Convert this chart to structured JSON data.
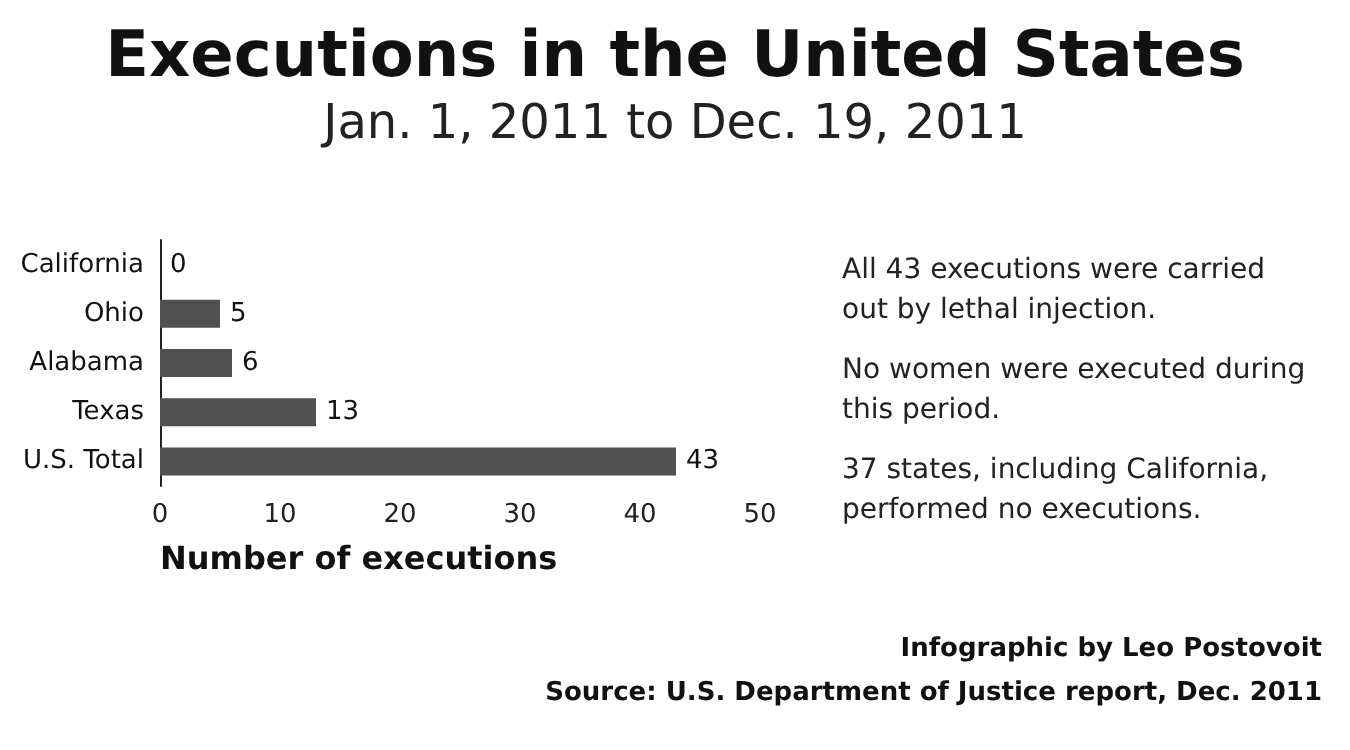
{
  "chart_data": {
    "type": "bar",
    "orientation": "horizontal",
    "title": "Executions in the United States",
    "subtitle": "Jan. 1, 2011 to Dec. 19, 2011",
    "xlabel": "Number of executions",
    "categories": [
      "California",
      "Ohio",
      "Alabama",
      "Texas",
      "U.S. Total"
    ],
    "values": [
      0,
      5,
      6,
      13,
      43
    ],
    "color": "#505050",
    "data_labels": true,
    "xlim": [
      0,
      50
    ],
    "xticks": [
      0,
      10,
      20,
      30,
      40,
      50
    ],
    "grid": false,
    "annotations": [
      "All 43 executions were carried out by lethal injection.",
      "No women were executed during this period.",
      "37 states, including California, performed no executions.",
      "Infographic by Leo Postovoit",
      "Source: U.S. Department of Justice report, Dec. 2011"
    ]
  }
}
